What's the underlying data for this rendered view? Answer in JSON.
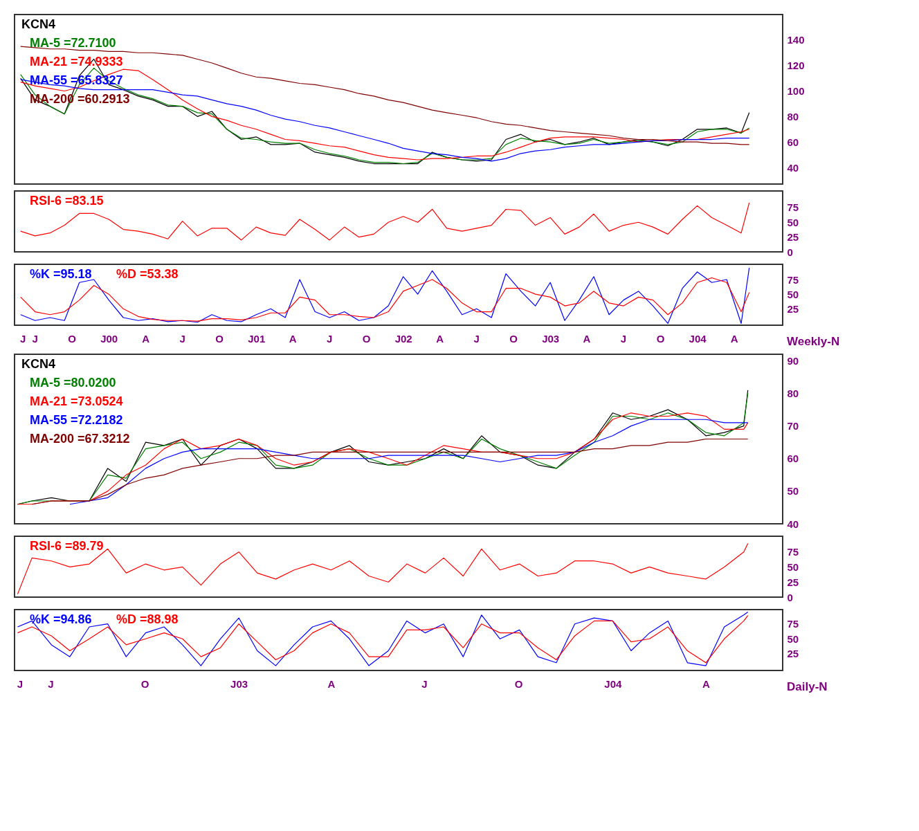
{
  "chart_data": [
    {
      "type": "line",
      "title": "KCN4",
      "legend": "top left",
      "tick_labels": "y",
      "xlim": [
        "1999-05-12",
        "2004-07-31"
      ],
      "ylim": [
        27,
        160
      ],
      "yticks": [
        40,
        60,
        80,
        100,
        120,
        140
      ],
      "x": [
        "1999-05-27",
        "1999-07-02",
        "1999-08-08",
        "1999-09-13",
        "1999-10-20",
        "1999-11-25",
        "2000-01-01",
        "2000-02-06",
        "2000-03-14",
        "2000-04-19",
        "2000-05-27",
        "2000-07-02",
        "2000-08-08",
        "2000-09-13",
        "2000-10-20",
        "2000-11-25",
        "2001-01-01",
        "2001-02-06",
        "2001-03-14",
        "2001-04-19",
        "2001-05-27",
        "2001-07-02",
        "2001-08-08",
        "2001-09-13",
        "2001-10-20",
        "2001-11-25",
        "2002-01-01",
        "2002-02-06",
        "2002-03-14",
        "2002-04-19",
        "2002-05-27",
        "2002-07-02",
        "2002-08-08",
        "2002-09-13",
        "2002-10-20",
        "2002-11-25",
        "2003-01-01",
        "2003-02-06",
        "2003-03-14",
        "2003-04-19",
        "2003-05-27",
        "2003-07-02",
        "2003-08-08",
        "2003-09-13",
        "2003-10-20",
        "2003-11-25",
        "2004-01-01",
        "2004-02-06",
        "2004-03-14",
        "2004-04-19",
        "2004-05-09"
      ],
      "series": [
        {
          "color": "#000000",
          "values": [
            110,
            93,
            88,
            82,
            112,
            125,
            105,
            101,
            96,
            93,
            88,
            88,
            80,
            84,
            70,
            62,
            64,
            58,
            58,
            59,
            52,
            50,
            48,
            45,
            43,
            43,
            43,
            43,
            52,
            48,
            46,
            45,
            46,
            62,
            66,
            60,
            62,
            58,
            60,
            63,
            58,
            60,
            62,
            60,
            57,
            62,
            70,
            70,
            71,
            67,
            83
          ]
        },
        {
          "name": "MA-5 =72.7100",
          "color": "#008000",
          "values": [
            113,
            97,
            88,
            82,
            105,
            118,
            108,
            102,
            97,
            94,
            89,
            88,
            83,
            82,
            70,
            63,
            62,
            60,
            59,
            59,
            54,
            51,
            49,
            46,
            44,
            44,
            43,
            44,
            51,
            48,
            46,
            46,
            47,
            58,
            63,
            61,
            60,
            58,
            59,
            62,
            59,
            60,
            61,
            60,
            58,
            60,
            68,
            70,
            70,
            67,
            71
          ]
        },
        {
          "name": "MA-21 =74.9333",
          "color": "#ff0000",
          "values": [
            107,
            104,
            102,
            100,
            103,
            108,
            113,
            117,
            116,
            109,
            101,
            93,
            86,
            80,
            77,
            73,
            70,
            66,
            62,
            61,
            59,
            57,
            56,
            53,
            50,
            48,
            47,
            46,
            47,
            47,
            48,
            49,
            49,
            52,
            56,
            60,
            63,
            64,
            64,
            64,
            63,
            62,
            60,
            61,
            62,
            62,
            62,
            64,
            66,
            68,
            70
          ]
        },
        {
          "name": "MA-55 =65.8327",
          "color": "#0000ff",
          "values": [
            109,
            107,
            105,
            104,
            102,
            101,
            101,
            101,
            101,
            101,
            99,
            97,
            96,
            93,
            90,
            88,
            85,
            81,
            78,
            76,
            73,
            71,
            68,
            65,
            62,
            59,
            55,
            53,
            51,
            50,
            48,
            47,
            45,
            47,
            51,
            53,
            54,
            56,
            57,
            58,
            58,
            59,
            60,
            61,
            61,
            62,
            62,
            62,
            63,
            63,
            63
          ]
        },
        {
          "name": "MA-200 =60.2913",
          "color": "#800000",
          "values": [
            135,
            134,
            133,
            133,
            132,
            132,
            131,
            131,
            130,
            130,
            129,
            128,
            125,
            122,
            118,
            114,
            111,
            110,
            108,
            106,
            105,
            103,
            101,
            98,
            96,
            93,
            91,
            88,
            85,
            83,
            81,
            79,
            76,
            74,
            73,
            71,
            69,
            68,
            67,
            66,
            65,
            63,
            62,
            62,
            61,
            60,
            60,
            59,
            59,
            58,
            58
          ]
        }
      ]
    },
    {
      "type": "line",
      "legend": "top left",
      "tick_labels": "y",
      "xlim": [
        "1999-05-12",
        "2004-07-31"
      ],
      "ylim": [
        0,
        103
      ],
      "yticks": [
        0,
        25,
        50,
        75
      ],
      "x": [
        "1999-05-27",
        "1999-07-02",
        "1999-08-08",
        "1999-09-13",
        "1999-10-20",
        "1999-11-25",
        "2000-01-01",
        "2000-02-06",
        "2000-03-14",
        "2000-04-19",
        "2000-05-27",
        "2000-07-02",
        "2000-08-08",
        "2000-09-13",
        "2000-10-20",
        "2000-11-25",
        "2001-01-01",
        "2001-02-06",
        "2001-03-14",
        "2001-04-19",
        "2001-05-27",
        "2001-07-02",
        "2001-08-08",
        "2001-09-13",
        "2001-10-20",
        "2001-11-25",
        "2002-01-01",
        "2002-02-06",
        "2002-03-14",
        "2002-04-19",
        "2002-05-27",
        "2002-07-02",
        "2002-08-08",
        "2002-09-13",
        "2002-10-20",
        "2002-11-25",
        "2003-01-01",
        "2003-02-06",
        "2003-03-14",
        "2003-04-19",
        "2003-05-27",
        "2003-07-02",
        "2003-08-08",
        "2003-09-13",
        "2003-10-20",
        "2003-11-25",
        "2004-01-01",
        "2004-02-06",
        "2004-03-14",
        "2004-04-19",
        "2004-05-09"
      ],
      "series": [
        {
          "name": "RSI-6 =83.15",
          "color": "#ff0000",
          "values": [
            35,
            27,
            32,
            45,
            65,
            65,
            55,
            38,
            35,
            30,
            22,
            52,
            27,
            40,
            40,
            20,
            42,
            32,
            28,
            55,
            38,
            20,
            42,
            25,
            30,
            50,
            60,
            50,
            72,
            40,
            35,
            40,
            45,
            72,
            70,
            45,
            58,
            30,
            42,
            64,
            35,
            45,
            50,
            42,
            30,
            55,
            78,
            58,
            45,
            32,
            83
          ]
        }
      ]
    },
    {
      "type": "line",
      "legend": "top left",
      "annotations": [
        "Weekly-N"
      ],
      "xlim": [
        "1999-05-12",
        "2004-07-31"
      ],
      "ylim": [
        -3,
        101
      ],
      "yticks": [
        25,
        50,
        75
      ],
      "xticks": [
        {
          "value": "1999-06-01",
          "label": "J"
        },
        {
          "value": "1999-07-01",
          "label": "J"
        },
        {
          "value": "1999-10-01",
          "label": "O"
        },
        {
          "value": "2000-01-01",
          "label": "J00"
        },
        {
          "value": "2000-04-01",
          "label": "A"
        },
        {
          "value": "2000-07-01",
          "label": "J"
        },
        {
          "value": "2000-10-01",
          "label": "O"
        },
        {
          "value": "2001-01-01",
          "label": "J01"
        },
        {
          "value": "2001-04-01",
          "label": "A"
        },
        {
          "value": "2001-07-01",
          "label": "J"
        },
        {
          "value": "2001-10-01",
          "label": "O"
        },
        {
          "value": "2002-01-01",
          "label": "J02"
        },
        {
          "value": "2002-04-01",
          "label": "A"
        },
        {
          "value": "2002-07-01",
          "label": "J"
        },
        {
          "value": "2002-10-01",
          "label": "O"
        },
        {
          "value": "2003-01-01",
          "label": "J03"
        },
        {
          "value": "2003-04-01",
          "label": "A"
        },
        {
          "value": "2003-07-01",
          "label": "J"
        },
        {
          "value": "2003-10-01",
          "label": "O"
        },
        {
          "value": "2004-01-01",
          "label": "J04"
        },
        {
          "value": "2004-04-01",
          "label": "A"
        }
      ],
      "x": [
        "1999-05-27",
        "1999-07-02",
        "1999-08-08",
        "1999-09-13",
        "1999-10-20",
        "1999-11-25",
        "2000-01-01",
        "2000-02-06",
        "2000-03-14",
        "2000-04-19",
        "2000-05-27",
        "2000-07-02",
        "2000-08-08",
        "2000-09-13",
        "2000-10-20",
        "2000-11-25",
        "2001-01-01",
        "2001-02-06",
        "2001-03-14",
        "2001-04-19",
        "2001-05-27",
        "2001-07-02",
        "2001-08-08",
        "2001-09-13",
        "2001-10-20",
        "2001-11-25",
        "2002-01-01",
        "2002-02-06",
        "2002-03-14",
        "2002-04-19",
        "2002-05-27",
        "2002-07-02",
        "2002-08-08",
        "2002-09-13",
        "2002-10-20",
        "2002-11-25",
        "2003-01-01",
        "2003-02-06",
        "2003-03-14",
        "2003-04-19",
        "2003-05-27",
        "2003-07-02",
        "2003-08-08",
        "2003-09-13",
        "2003-10-20",
        "2003-11-25",
        "2004-01-01",
        "2004-02-06",
        "2004-03-14",
        "2004-04-19",
        "2004-05-09"
      ],
      "series": [
        {
          "name": "%K =95.18",
          "color": "#0000ff",
          "values": [
            15,
            5,
            10,
            5,
            70,
            75,
            40,
            10,
            5,
            8,
            3,
            5,
            2,
            15,
            5,
            3,
            15,
            25,
            10,
            75,
            20,
            10,
            20,
            5,
            10,
            30,
            80,
            50,
            90,
            55,
            15,
            25,
            10,
            85,
            55,
            30,
            70,
            5,
            40,
            80,
            15,
            40,
            55,
            30,
            0,
            60,
            88,
            70,
            75,
            0,
            95
          ]
        },
        {
          "name": "%D =53.38",
          "color": "#ff0000",
          "values": [
            45,
            20,
            15,
            20,
            40,
            65,
            50,
            25,
            12,
            7,
            5,
            5,
            4,
            8,
            8,
            6,
            10,
            18,
            18,
            45,
            40,
            15,
            15,
            12,
            10,
            20,
            55,
            65,
            75,
            60,
            35,
            20,
            20,
            60,
            60,
            50,
            45,
            30,
            35,
            55,
            35,
            30,
            45,
            40,
            15,
            35,
            70,
            78,
            70,
            20,
            53
          ]
        }
      ]
    },
    {
      "type": "line",
      "title": "KCN4",
      "legend": "top left",
      "tick_labels": "y",
      "xlim": [
        "2002-05-27",
        "2004-06-15"
      ],
      "ylim": [
        40,
        92
      ],
      "yticks": [
        40,
        50,
        60,
        70,
        80,
        90
      ],
      "x": [
        "2002-05-30",
        "2002-06-13",
        "2002-07-02",
        "2002-07-20",
        "2002-08-08",
        "2002-08-26",
        "2002-09-13",
        "2002-10-02",
        "2002-10-20",
        "2002-11-07",
        "2002-11-25",
        "2002-12-14",
        "2003-01-01",
        "2003-01-19",
        "2003-02-06",
        "2003-02-24",
        "2003-03-14",
        "2003-04-01",
        "2003-04-19",
        "2003-05-08",
        "2003-05-27",
        "2003-06-14",
        "2003-07-02",
        "2003-07-20",
        "2003-08-08",
        "2003-08-26",
        "2003-09-13",
        "2003-10-02",
        "2003-10-20",
        "2003-11-07",
        "2003-11-25",
        "2003-12-14",
        "2004-01-01",
        "2004-01-19",
        "2004-02-06",
        "2004-02-24",
        "2004-03-14",
        "2004-04-01",
        "2004-04-19",
        "2004-05-08",
        "2004-05-12"
      ],
      "series": [
        {
          "color": "#000000",
          "values": [
            46,
            47,
            48,
            47,
            47,
            57,
            53,
            65,
            64,
            66,
            58,
            64,
            66,
            63,
            57,
            57,
            59,
            62,
            64,
            59,
            58,
            59,
            60,
            63,
            60,
            67,
            62,
            61,
            58,
            57,
            62,
            66,
            74,
            72,
            73,
            75,
            72,
            67,
            68,
            70,
            81
          ]
        },
        {
          "name": "MA-5 =80.0200",
          "color": "#008000",
          "values": [
            46,
            47,
            47,
            47,
            47,
            55,
            54,
            63,
            64,
            65,
            60,
            62,
            65,
            64,
            58,
            57,
            58,
            62,
            63,
            60,
            58,
            58,
            60,
            62,
            60,
            66,
            63,
            61,
            59,
            57,
            61,
            65,
            73,
            73,
            72,
            74,
            72,
            68,
            67,
            71,
            80
          ]
        },
        {
          "name": "MA-21 =73.0524",
          "color": "#ff0000",
          "values": [
            46,
            46,
            47,
            47,
            47,
            50,
            55,
            58,
            63,
            66,
            63,
            64,
            66,
            64,
            60,
            58,
            59,
            62,
            63,
            62,
            60,
            58,
            61,
            64,
            63,
            62,
            62,
            61,
            60,
            60,
            62,
            66,
            72,
            74,
            73,
            73,
            74,
            73,
            69,
            69,
            71
          ]
        },
        {
          "name": "MA-55 =72.2182",
          "color": "#0000ff",
          "values": [
            null,
            null,
            null,
            46,
            47,
            48,
            52,
            57,
            60,
            62,
            63,
            63,
            63,
            63,
            62,
            61,
            60,
            60,
            60,
            60,
            61,
            61,
            61,
            61,
            61,
            60,
            59,
            60,
            61,
            61,
            62,
            65,
            67,
            70,
            72,
            72,
            72,
            72,
            71,
            71,
            71
          ]
        },
        {
          "name": "MA-200 =67.3212",
          "color": "#800000",
          "values": [
            null,
            46,
            47,
            47,
            47,
            49,
            52,
            54,
            55,
            57,
            58,
            59,
            60,
            60,
            61,
            61,
            62,
            62,
            62,
            62,
            62,
            62,
            62,
            62,
            62,
            62,
            62,
            62,
            62,
            62,
            62,
            63,
            63,
            64,
            64,
            65,
            65,
            66,
            66,
            66,
            66
          ]
        }
      ]
    },
    {
      "type": "line",
      "legend": "top left",
      "tick_labels": "y",
      "xlim": [
        "2002-05-27",
        "2004-06-15"
      ],
      "ylim": [
        0,
        101
      ],
      "yticks": [
        0,
        25,
        50,
        75
      ],
      "x": [
        "2002-05-30",
        "2002-06-13",
        "2002-07-02",
        "2002-07-20",
        "2002-08-08",
        "2002-08-26",
        "2002-09-13",
        "2002-10-02",
        "2002-10-20",
        "2002-11-07",
        "2002-11-25",
        "2002-12-14",
        "2003-01-01",
        "2003-01-19",
        "2003-02-06",
        "2003-02-24",
        "2003-03-14",
        "2003-04-01",
        "2003-04-19",
        "2003-05-08",
        "2003-05-27",
        "2003-06-14",
        "2003-07-02",
        "2003-07-20",
        "2003-08-08",
        "2003-08-26",
        "2003-09-13",
        "2003-10-02",
        "2003-10-20",
        "2003-11-07",
        "2003-11-25",
        "2003-12-14",
        "2004-01-01",
        "2004-01-19",
        "2004-02-06",
        "2004-02-24",
        "2004-03-14",
        "2004-04-01",
        "2004-04-19",
        "2004-05-08",
        "2004-05-12"
      ],
      "series": [
        {
          "name": "RSI-6 =89.79",
          "color": "#ff0000",
          "values": [
            5,
            65,
            60,
            50,
            55,
            80,
            40,
            55,
            45,
            50,
            20,
            55,
            75,
            40,
            30,
            45,
            55,
            45,
            60,
            35,
            25,
            55,
            40,
            65,
            35,
            80,
            45,
            55,
            35,
            40,
            60,
            60,
            55,
            40,
            50,
            40,
            35,
            30,
            50,
            75,
            89
          ]
        }
      ]
    },
    {
      "type": "line",
      "legend": "top left",
      "annotations": [
        "Daily-N"
      ],
      "xlim": [
        "2002-05-27",
        "2004-06-15"
      ],
      "ylim": [
        -3,
        99
      ],
      "yticks": [
        25,
        50,
        75
      ],
      "xticks": [
        {
          "value": "2002-06-01",
          "label": "J"
        },
        {
          "value": "2002-07-01",
          "label": "J"
        },
        {
          "value": "2002-10-01",
          "label": "O"
        },
        {
          "value": "2003-01-01",
          "label": "J03"
        },
        {
          "value": "2003-04-01",
          "label": "A"
        },
        {
          "value": "2003-07-01",
          "label": "J"
        },
        {
          "value": "2003-10-01",
          "label": "O"
        },
        {
          "value": "2004-01-01",
          "label": "J04"
        },
        {
          "value": "2004-04-01",
          "label": "A"
        }
      ],
      "x": [
        "2002-05-30",
        "2002-06-13",
        "2002-07-02",
        "2002-07-20",
        "2002-08-08",
        "2002-08-26",
        "2002-09-13",
        "2002-10-02",
        "2002-10-20",
        "2002-11-07",
        "2002-11-25",
        "2002-12-14",
        "2003-01-01",
        "2003-01-19",
        "2003-02-06",
        "2003-02-24",
        "2003-03-14",
        "2003-04-01",
        "2003-04-19",
        "2003-05-08",
        "2003-05-27",
        "2003-06-14",
        "2003-07-02",
        "2003-07-20",
        "2003-08-08",
        "2003-08-26",
        "2003-09-13",
        "2003-10-02",
        "2003-10-20",
        "2003-11-07",
        "2003-11-25",
        "2003-12-14",
        "2004-01-01",
        "2004-01-19",
        "2004-02-06",
        "2004-02-24",
        "2004-03-14",
        "2004-04-01",
        "2004-04-19",
        "2004-05-08",
        "2004-05-12"
      ],
      "series": [
        {
          "name": "%K =94.86",
          "color": "#0000ff",
          "values": [
            70,
            80,
            40,
            20,
            70,
            75,
            20,
            60,
            70,
            40,
            5,
            50,
            85,
            30,
            5,
            40,
            70,
            80,
            50,
            5,
            30,
            80,
            60,
            75,
            20,
            90,
            50,
            65,
            20,
            10,
            75,
            85,
            80,
            30,
            60,
            80,
            10,
            5,
            70,
            90,
            95
          ]
        },
        {
          "name": "%D =88.98",
          "color": "#ff0000",
          "values": [
            60,
            70,
            55,
            30,
            50,
            70,
            40,
            50,
            60,
            50,
            20,
            35,
            75,
            45,
            15,
            30,
            60,
            75,
            60,
            20,
            20,
            65,
            65,
            70,
            35,
            75,
            60,
            60,
            35,
            15,
            55,
            80,
            80,
            45,
            50,
            70,
            30,
            10,
            50,
            80,
            89
          ]
        }
      ]
    }
  ]
}
